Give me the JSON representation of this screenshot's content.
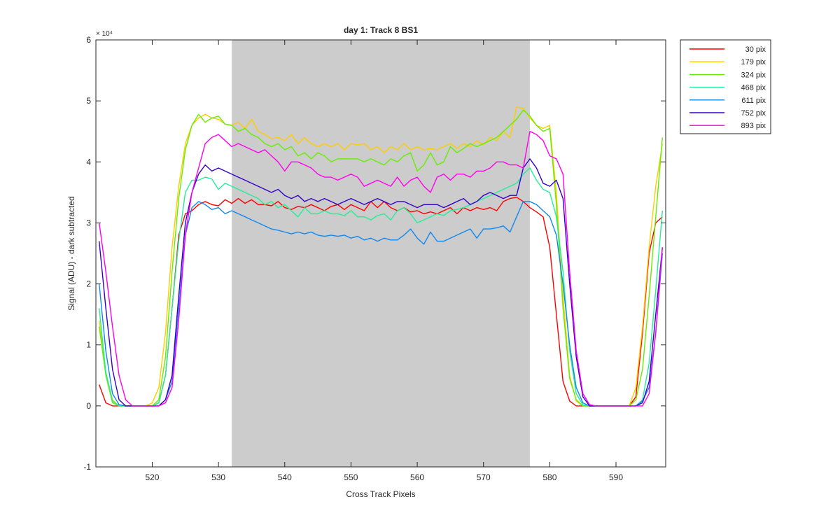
{
  "chart_data": {
    "type": "line",
    "title": "day 1: Track 8  BS1",
    "xlabel": "Cross Track Pixels",
    "ylabel": "Signal (ADU) - dark subtracted",
    "xlim": [
      511.5,
      597.5
    ],
    "ylim": [
      -1,
      6
    ],
    "y_scale_exponent": "× 10⁴",
    "x_ticks": [
      520,
      530,
      540,
      550,
      560,
      570,
      580,
      590
    ],
    "y_ticks": [
      -1,
      0,
      1,
      2,
      3,
      4,
      5,
      6
    ],
    "shaded_region": [
      532,
      577
    ],
    "shaded_color": "#cccccc",
    "grid": false,
    "legend_position": "outside-top-right",
    "x": [
      512,
      513,
      514,
      515,
      516,
      517,
      518,
      519,
      520,
      521,
      522,
      523,
      524,
      525,
      526,
      527,
      528,
      529,
      530,
      531,
      532,
      533,
      534,
      535,
      536,
      537,
      538,
      539,
      540,
      541,
      542,
      543,
      544,
      545,
      546,
      547,
      548,
      549,
      550,
      551,
      552,
      553,
      554,
      555,
      556,
      557,
      558,
      559,
      560,
      561,
      562,
      563,
      564,
      565,
      566,
      567,
      568,
      569,
      570,
      571,
      572,
      573,
      574,
      575,
      576,
      577,
      578,
      579,
      580,
      581,
      582,
      583,
      584,
      585,
      586,
      587,
      588,
      589,
      590,
      591,
      592,
      593,
      594,
      595,
      596,
      597
    ],
    "series": [
      {
        "name": "30 pix",
        "color": "#ff0000",
        "values": [
          0.35,
          0.05,
          0,
          0,
          0,
          0,
          0,
          0,
          0,
          0.05,
          0.5,
          1.6,
          2.8,
          3.15,
          3.2,
          3.3,
          3.35,
          3.3,
          3.28,
          3.38,
          3.32,
          3.4,
          3.32,
          3.38,
          3.3,
          3.3,
          3.28,
          3.35,
          3.25,
          3.22,
          3.27,
          3.25,
          3.3,
          3.25,
          3.2,
          3.27,
          3.3,
          3.22,
          3.3,
          3.25,
          3.2,
          3.35,
          3.25,
          3.35,
          3.25,
          3.2,
          3.25,
          3.18,
          3.2,
          3.15,
          3.18,
          3.15,
          3.2,
          3.25,
          3.15,
          3.25,
          3.2,
          3.25,
          3.22,
          3.25,
          3.2,
          3.35,
          3.4,
          3.42,
          3.35,
          3.25,
          3.18,
          3.1,
          2.6,
          1.5,
          0.4,
          0.08,
          0,
          0,
          0,
          0,
          0,
          0,
          0,
          0,
          0,
          0.15,
          1.2,
          2.5,
          3.0,
          3.1
        ]
      },
      {
        "name": "179 pix",
        "color": "#ffcc00",
        "values": [
          1.4,
          0.55,
          0.1,
          0,
          0,
          0,
          0,
          0,
          0.05,
          0.3,
          1.2,
          2.6,
          3.6,
          4.3,
          4.6,
          4.72,
          4.78,
          4.72,
          4.7,
          4.62,
          4.6,
          4.65,
          4.55,
          4.7,
          4.5,
          4.45,
          4.38,
          4.4,
          4.35,
          4.45,
          4.3,
          4.4,
          4.3,
          4.25,
          4.3,
          4.25,
          4.3,
          4.2,
          4.3,
          4.28,
          4.3,
          4.2,
          4.25,
          4.15,
          4.25,
          4.2,
          4.3,
          4.2,
          4.25,
          4.2,
          4.22,
          4.2,
          4.25,
          4.3,
          4.22,
          4.3,
          4.25,
          4.35,
          4.28,
          4.4,
          4.35,
          4.5,
          4.4,
          4.9,
          4.88,
          4.72,
          4.6,
          4.55,
          4.6,
          3.5,
          1.8,
          0.5,
          0.08,
          0,
          0,
          0,
          0,
          0,
          0,
          0,
          0,
          0.3,
          1.3,
          2.6,
          3.6,
          4.3
        ]
      },
      {
        "name": "324 pix",
        "color": "#66ee00",
        "values": [
          1.3,
          0.5,
          0.05,
          0,
          0,
          0,
          0,
          0,
          0,
          0.1,
          0.8,
          2.2,
          3.4,
          4.2,
          4.6,
          4.78,
          4.65,
          4.72,
          4.75,
          4.62,
          4.6,
          4.5,
          4.55,
          4.45,
          4.4,
          4.3,
          4.25,
          4.3,
          4.2,
          4.25,
          4.1,
          4.15,
          4.05,
          4.15,
          4.1,
          4.0,
          4.05,
          4.05,
          4.05,
          4.05,
          4.0,
          4.05,
          4.0,
          3.95,
          4.05,
          4.0,
          4.1,
          4.15,
          3.85,
          3.95,
          4.15,
          3.95,
          4.0,
          4.25,
          4.15,
          4.22,
          4.3,
          4.25,
          4.3,
          4.35,
          4.4,
          4.5,
          4.6,
          4.7,
          4.85,
          4.75,
          4.6,
          4.5,
          4.55,
          3.3,
          1.6,
          0.45,
          0.1,
          0,
          0,
          0,
          0,
          0,
          0,
          0,
          0,
          0.1,
          0.6,
          1.8,
          3.1,
          4.4
        ]
      },
      {
        "name": "468 pix",
        "color": "#22ee99",
        "values": [
          1.6,
          0.55,
          0.08,
          0,
          0,
          0,
          0,
          0,
          0,
          0.05,
          0.5,
          1.6,
          2.7,
          3.5,
          3.7,
          3.7,
          3.75,
          3.72,
          3.55,
          3.65,
          3.6,
          3.55,
          3.5,
          3.45,
          3.4,
          3.3,
          3.35,
          3.25,
          3.3,
          3.2,
          3.1,
          3.25,
          3.15,
          3.15,
          3.2,
          3.15,
          3.15,
          3.12,
          3.2,
          3.1,
          3.1,
          3.05,
          3.12,
          3.15,
          3.05,
          3.2,
          3.25,
          3.15,
          3.0,
          3.05,
          3.1,
          3.15,
          3.12,
          3.2,
          3.22,
          3.25,
          3.3,
          3.35,
          3.4,
          3.45,
          3.5,
          3.55,
          3.6,
          3.65,
          3.8,
          3.9,
          3.7,
          3.55,
          3.5,
          3.1,
          2.2,
          0.9,
          0.2,
          0.02,
          0,
          0,
          0,
          0,
          0,
          0,
          0,
          0,
          0.1,
          0.7,
          1.9,
          3.2
        ]
      },
      {
        "name": "611 pix",
        "color": "#1188ee",
        "values": [
          2.0,
          0.9,
          0.2,
          0.02,
          0,
          0,
          0,
          0,
          0,
          0,
          0.1,
          0.4,
          1.6,
          2.8,
          3.25,
          3.35,
          3.3,
          3.22,
          3.25,
          3.15,
          3.2,
          3.15,
          3.1,
          3.05,
          3.0,
          2.95,
          2.9,
          2.88,
          2.85,
          2.82,
          2.85,
          2.82,
          2.85,
          2.8,
          2.78,
          2.8,
          2.78,
          2.8,
          2.75,
          2.78,
          2.72,
          2.75,
          2.7,
          2.75,
          2.72,
          2.72,
          2.8,
          2.9,
          2.75,
          2.65,
          2.85,
          2.7,
          2.7,
          2.75,
          2.8,
          2.85,
          2.9,
          2.75,
          2.9,
          2.9,
          2.92,
          2.95,
          2.85,
          3.1,
          3.35,
          3.35,
          3.3,
          3.2,
          3.1,
          2.8,
          2.0,
          1.0,
          0.3,
          0.05,
          0,
          0,
          0,
          0,
          0,
          0,
          0,
          0,
          0.08,
          0.3,
          1.2,
          2.5
        ]
      },
      {
        "name": "752 pix",
        "color": "#3300cc",
        "values": [
          2.7,
          1.6,
          0.6,
          0.1,
          0,
          0,
          0,
          0,
          0,
          0,
          0.1,
          0.5,
          1.8,
          3.0,
          3.5,
          3.8,
          3.95,
          3.85,
          3.9,
          3.85,
          3.8,
          3.75,
          3.7,
          3.65,
          3.6,
          3.55,
          3.5,
          3.55,
          3.45,
          3.4,
          3.45,
          3.35,
          3.4,
          3.35,
          3.4,
          3.35,
          3.3,
          3.35,
          3.4,
          3.35,
          3.3,
          3.35,
          3.4,
          3.35,
          3.3,
          3.35,
          3.35,
          3.3,
          3.25,
          3.3,
          3.3,
          3.3,
          3.25,
          3.3,
          3.35,
          3.4,
          3.3,
          3.35,
          3.45,
          3.5,
          3.45,
          3.4,
          3.45,
          3.45,
          3.9,
          4.05,
          3.9,
          3.65,
          3.6,
          3.7,
          3.4,
          2.0,
          0.8,
          0.15,
          0,
          0,
          0,
          0,
          0,
          0,
          0,
          0,
          0.05,
          0.4,
          1.5,
          2.6
        ]
      },
      {
        "name": "893 pix",
        "color": "#ff00ee",
        "values": [
          3.0,
          2.2,
          1.3,
          0.5,
          0.1,
          0,
          0,
          0,
          0,
          0,
          0.05,
          0.3,
          1.4,
          2.8,
          3.5,
          3.9,
          4.3,
          4.4,
          4.45,
          4.35,
          4.25,
          4.3,
          4.25,
          4.2,
          4.15,
          4.2,
          4.1,
          4.0,
          3.85,
          4.0,
          4.0,
          3.95,
          3.9,
          3.8,
          3.75,
          3.75,
          3.7,
          3.75,
          3.8,
          3.75,
          3.6,
          3.65,
          3.7,
          3.65,
          3.6,
          3.75,
          3.6,
          3.7,
          3.75,
          3.6,
          3.5,
          3.75,
          3.8,
          3.7,
          3.8,
          3.8,
          3.75,
          3.85,
          3.85,
          3.9,
          4.0,
          4.0,
          3.95,
          3.95,
          3.9,
          4.5,
          4.45,
          4.35,
          4.1,
          4.05,
          3.8,
          2.2,
          0.9,
          0.2,
          0.02,
          0,
          0,
          0,
          0,
          0,
          0,
          0,
          0,
          0.2,
          1.2,
          2.6
        ]
      }
    ]
  }
}
